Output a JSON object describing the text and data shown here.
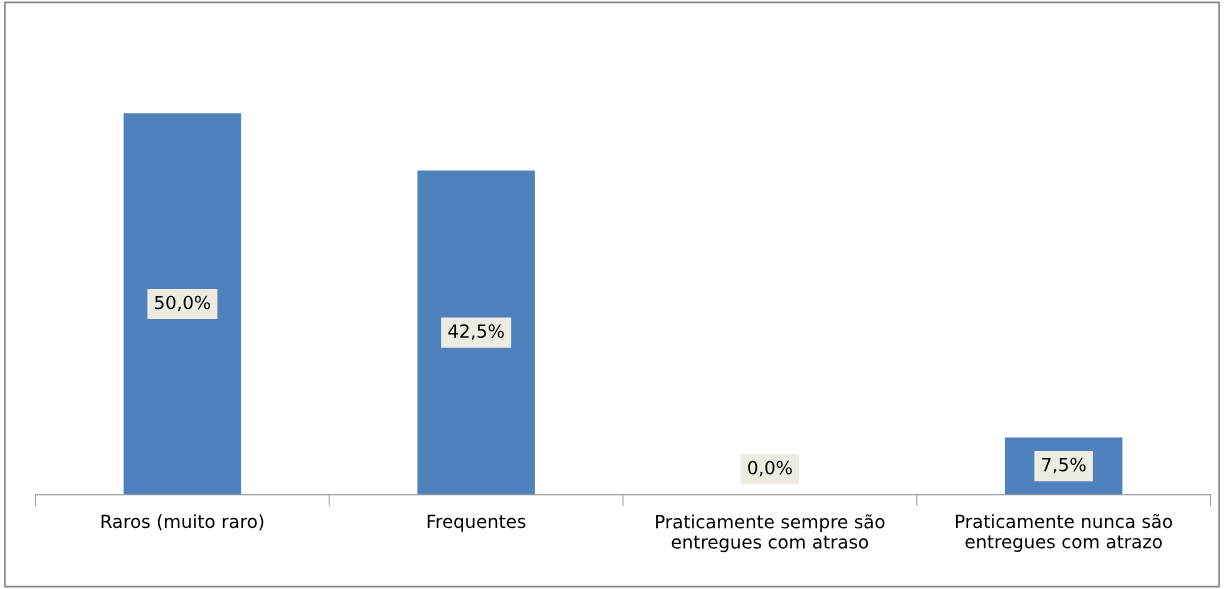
{
  "chart_data": {
    "type": "bar",
    "categories": [
      "Raros (muito raro)",
      "Frequentes",
      "Praticamente sempre são\nentregues com atraso",
      "Praticamente nunca são\nentregues com atrazo"
    ],
    "values": [
      50.0,
      42.5,
      0.0,
      7.5
    ],
    "value_labels": [
      "50,0%",
      "42,5%",
      "0,0%",
      "7,5%"
    ],
    "color": "#4f81bd",
    "grid": false,
    "legend": false
  }
}
